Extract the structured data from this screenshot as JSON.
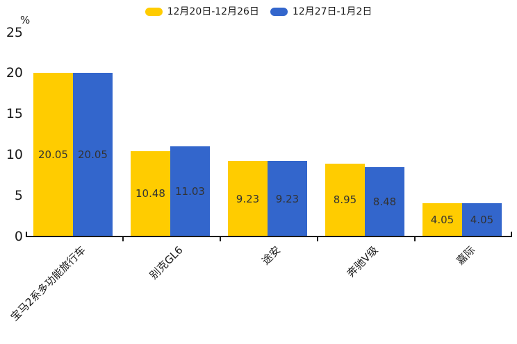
{
  "chart_data": {
    "type": "bar",
    "title": "",
    "unit_label": "%",
    "categories": [
      "宝马2系多功能旅行车",
      "别克GL6",
      "途安",
      "奔驰V级",
      "嘉际"
    ],
    "series": [
      {
        "name": "12月20日-12月26日",
        "color": "#FFCC00",
        "values": [
          20.05,
          10.48,
          9.23,
          8.95,
          4.05
        ]
      },
      {
        "name": "12月27日-1月2日",
        "color": "#3366CC",
        "values": [
          20.05,
          11.03,
          9.23,
          8.48,
          4.05
        ]
      }
    ],
    "yticks": [
      0,
      5,
      10,
      15,
      20,
      25
    ],
    "ylim": [
      0,
      25
    ],
    "legend_position": "top-center",
    "grid": false,
    "value_labels": "inside-center",
    "value_label_color": "#333333",
    "axis_color": "#1a1a1a"
  }
}
